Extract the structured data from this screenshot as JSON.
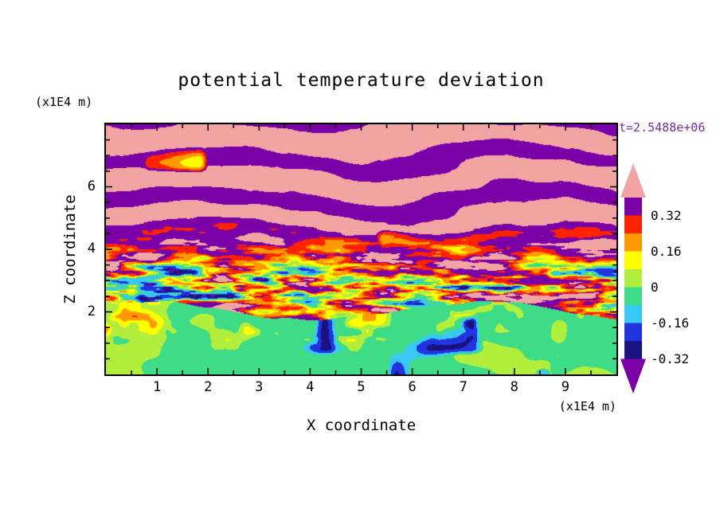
{
  "chart_data": {
    "type": "heatmap",
    "title": "potential temperature deviation",
    "xlabel": "X coordinate",
    "ylabel": "Z coordinate",
    "x_units": "(x1E4 m)",
    "y_units": "(x1E4 m)",
    "time_annotation": "t=2.5488e+06",
    "xlim": [
      0,
      10
    ],
    "ylim": [
      0,
      8
    ],
    "x_ticks": [
      1,
      2,
      3,
      4,
      5,
      6,
      7,
      8,
      9
    ],
    "y_ticks": [
      2,
      4,
      6
    ],
    "grid": false,
    "colorbar": {
      "position": "right",
      "tick_labels": [
        "0.32",
        "0.16",
        "0",
        "-0.16",
        "-0.32"
      ],
      "levels_high_to_low": [
        0.4,
        0.32,
        0.24,
        0.16,
        0.08,
        0,
        -0.08,
        -0.16,
        -0.24,
        -0.32
      ],
      "over_color": "#F2A4A2",
      "under_color": "#7A00A8",
      "segment_colors_high_to_low": [
        "#7A00A8",
        "#FF2200",
        "#FF9900",
        "#FFFF00",
        "#B2EE3C",
        "#3EDC86",
        "#38C8F5",
        "#2233E0",
        "#1A1280"
      ]
    },
    "pattern_description": "pink/purple stratified horizontal wave bands in upper region, multicolor turbulent mixing band near z=2-3.5, green convective boundary layer with yellow plumes below z=2"
  },
  "colors": {
    "text": "#000000",
    "frame": "#000000",
    "timestamp_text": "#7030A0",
    "background": "#FFFFFF"
  }
}
